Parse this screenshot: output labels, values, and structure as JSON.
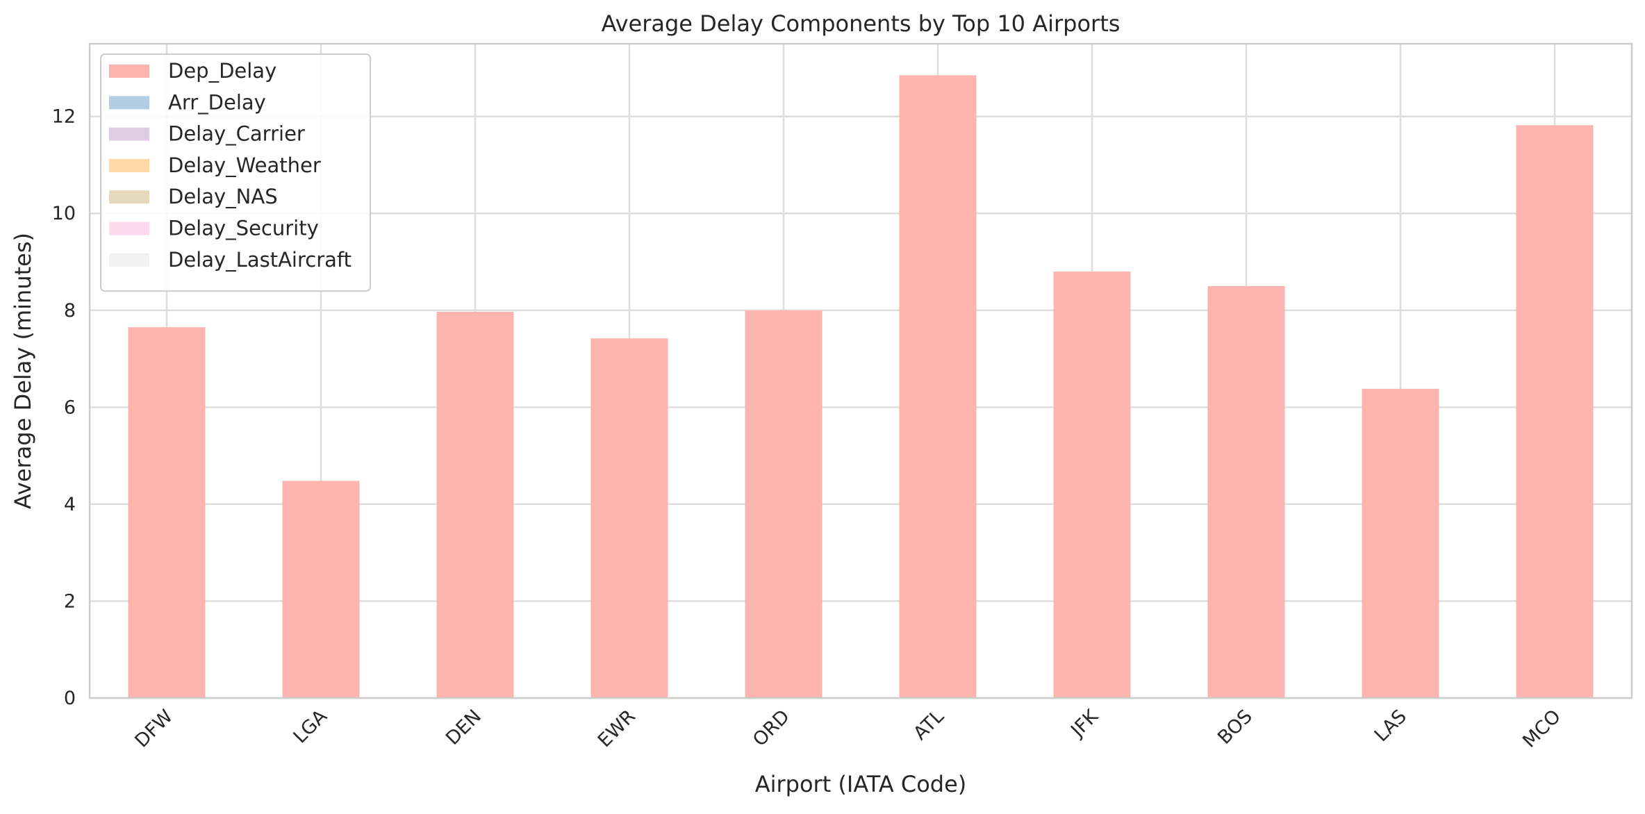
{
  "chart_data": {
    "type": "bar",
    "stacked": true,
    "title": "Average Delay Components by Top 10 Airports",
    "xlabel": "Airport (IATA Code)",
    "ylabel": "Average Delay (minutes)",
    "categories": [
      "DFW",
      "LGA",
      "DEN",
      "EWR",
      "ORD",
      "ATL",
      "JFK",
      "BOS",
      "LAS",
      "MCO"
    ],
    "ylim": [
      0,
      13.5
    ],
    "yticks": [
      0,
      2,
      4,
      6,
      8,
      10,
      12
    ],
    "grid": true,
    "legend_position": "top-left",
    "series": [
      {
        "name": "Dep_Delay",
        "color": "#fbb4ae",
        "values": [
          7.65,
          4.48,
          7.97,
          7.42,
          8.0,
          12.85,
          8.8,
          8.5,
          6.38,
          11.82
        ]
      },
      {
        "name": "Arr_Delay",
        "color": "#b3cde3",
        "values": [
          0,
          0,
          0,
          0,
          0,
          0,
          0,
          0,
          0,
          0
        ]
      },
      {
        "name": "Delay_Carrier",
        "color": "#decbe4",
        "values": [
          0,
          0,
          0,
          0,
          0,
          0,
          0,
          0,
          0,
          0
        ]
      },
      {
        "name": "Delay_Weather",
        "color": "#fed9a6",
        "values": [
          0,
          0,
          0,
          0,
          0,
          0,
          0,
          0,
          0,
          0
        ]
      },
      {
        "name": "Delay_NAS",
        "color": "#e5d8bd",
        "values": [
          0,
          0,
          0,
          0,
          0,
          0,
          0,
          0,
          0,
          0
        ]
      },
      {
        "name": "Delay_Security",
        "color": "#fddaec",
        "values": [
          0,
          0,
          0,
          0,
          0,
          0,
          0,
          0,
          0,
          0
        ]
      },
      {
        "name": "Delay_LastAircraft",
        "color": "#f2f2f2",
        "values": [
          0,
          0,
          0,
          0,
          0,
          0,
          0,
          0,
          0,
          0
        ]
      }
    ]
  }
}
